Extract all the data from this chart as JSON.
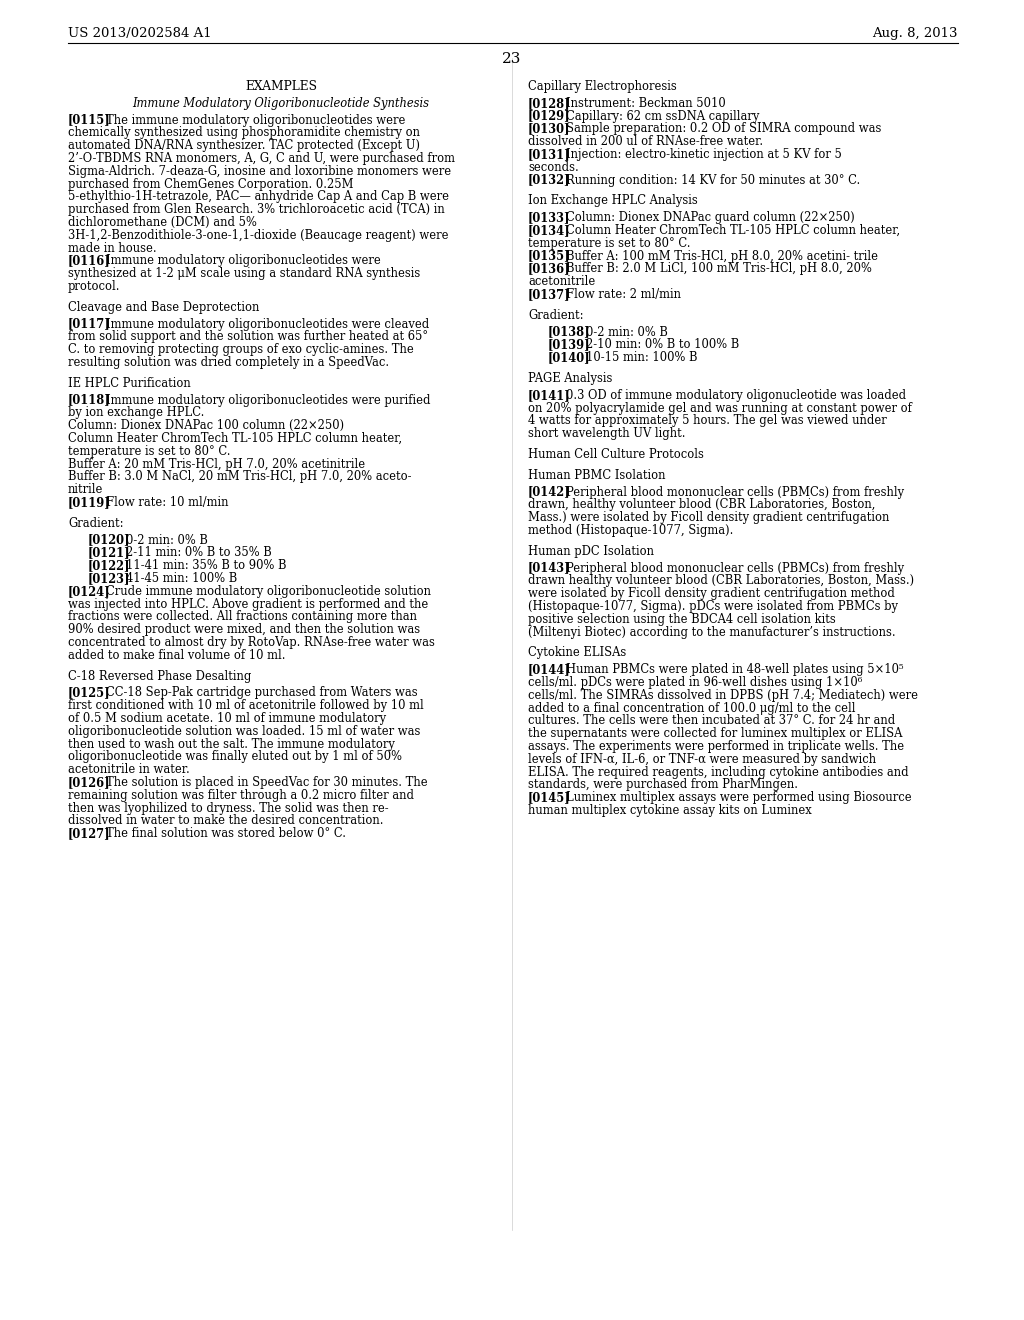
{
  "header_left": "US 2013/0202584 A1",
  "header_right": "Aug. 8, 2013",
  "page_number": "23",
  "background_color": "#ffffff",
  "text_color": "#000000",
  "left_column": [
    {
      "type": "section_title_center",
      "text": "EXAMPLES"
    },
    {
      "type": "subsection_title_center",
      "text": "Immune Modulatory Oligoribonucleotide Synthesis"
    },
    {
      "type": "paragraph",
      "tag": "[0115]",
      "text": "The immune modulatory oligoribonucleotides were chemically synthesized using phosphoramidite chemistry on automated DNA/RNA synthesizer. TAC protected (Except U) 2’-O-TBDMS RNA monomers, A, G, C and U, were purchased from Sigma-Aldrich. 7-deaza-G, inosine and loxoribine monomers were purchased from ChemGenes Corporation. 0.25M 5-ethylthio-1H-tetrazole, PAC— anhydride Cap A and Cap B were purchased from Glen Research. 3% trichloroacetic acid (TCA) in dichloromethane (DCM) and 5%   3H-1,2-Benzodithiole-3-one-1,1-dioxide  (Beaucage reagent) were made in house."
    },
    {
      "type": "paragraph",
      "tag": "[0116]",
      "text": "Immune modulatory oligoribonucleotides were synthesized at 1-2 μM scale using a standard RNA synthesis protocol."
    },
    {
      "type": "gap"
    },
    {
      "type": "subsection_title",
      "text": "Cleavage and Base Deprotection"
    },
    {
      "type": "paragraph",
      "tag": "[0117]",
      "text": "Immune modulatory oligoribonucleotides were cleaved from solid support and the solution was further heated at 65° C. to removing protecting groups of exo cyclic-amines. The resulting solution was dried completely in a SpeedVac."
    },
    {
      "type": "gap"
    },
    {
      "type": "subsection_title",
      "text": "IE HPLC Purification"
    },
    {
      "type": "paragraph",
      "tag": "[0118]",
      "text": "Immune modulatory oligoribonucleotides were purified by ion exchange HPLC."
    },
    {
      "type": "plain_text",
      "text": "Column: Dionex DNAPac 100 column (22×250)"
    },
    {
      "type": "plain_text",
      "text": "Column Heater ChromTech TL-105 HPLC column heater,\ntemperature is set to 80° C."
    },
    {
      "type": "plain_text",
      "text": "Buffer A: 20 mM Tris-HCl, pH 7.0, 20% acetinitrile"
    },
    {
      "type": "plain_text",
      "text": "Buffer B: 3.0 M NaCl, 20 mM Tris-HCl, pH 7.0, 20% aceto-\nnitrile"
    },
    {
      "type": "paragraph",
      "tag": "[0119]",
      "text": "Flow rate: 10 ml/min"
    },
    {
      "type": "gap"
    },
    {
      "type": "subsection_title",
      "text": "Gradient:"
    },
    {
      "type": "gradient_item",
      "tag": "[0120]",
      "text": "0-2 min: 0% B"
    },
    {
      "type": "gradient_item",
      "tag": "[0121]",
      "text": "2-11 min: 0% B to 35% B"
    },
    {
      "type": "gradient_item",
      "tag": "[0122]",
      "text": "11-41 min: 35% B to 90% B"
    },
    {
      "type": "gradient_item",
      "tag": "[0123]",
      "text": "41-45 min: 100% B"
    },
    {
      "type": "paragraph",
      "tag": "[0124]",
      "text": "Crude immune modulatory oligoribonucleotide solution was injected into HPLC. Above gradient is performed and the fractions were collected. All fractions containing more than 90% desired product were mixed, and then the solution was concentrated to almost dry by RotoVap. RNAse-free water was added to make final volume of 10 ml."
    },
    {
      "type": "gap"
    },
    {
      "type": "subsection_title",
      "text": "C-18 Reversed Phase Desalting"
    },
    {
      "type": "paragraph",
      "tag": "[0125]",
      "text": "CC-18 Sep-Pak cartridge purchased from Waters was first conditioned with 10 ml of acetonitrile followed by 10 ml of 0.5 M sodium acetate. 10 ml of immune modulatory oligoribonucleotide solution was loaded. 15 ml of water was then used to wash out the salt. The immune modulatory oligoribonucleotide was finally eluted out by 1 ml of 50% acetonitrile in water."
    },
    {
      "type": "paragraph",
      "tag": "[0126]",
      "text": "The solution is placed in SpeedVac for 30 minutes. The remaining solution was filter through a 0.2 micro filter and then was lyophilized to dryness. The solid was then re-dissolved in water to make the desired concentration."
    },
    {
      "type": "paragraph",
      "tag": "[0127]",
      "text": "The final solution was stored below 0° C."
    }
  ],
  "right_column": [
    {
      "type": "subsection_title",
      "text": "Capillary Electrophoresis"
    },
    {
      "type": "paragraph",
      "tag": "[0128]",
      "text": "Instrument: Beckman 5010"
    },
    {
      "type": "paragraph",
      "tag": "[0129]",
      "text": "Capillary: 62 cm ssDNA capillary"
    },
    {
      "type": "paragraph",
      "tag": "[0130]",
      "text": "Sample preparation: 0.2 OD of SIMRA compound was dissolved in 200 ul of RNAse-free water."
    },
    {
      "type": "paragraph",
      "tag": "[0131]",
      "text": "Injection: electro-kinetic injection at 5 KV for 5 seconds."
    },
    {
      "type": "paragraph",
      "tag": "[0132]",
      "text": "Running condition: 14 KV for 50 minutes at 30° C."
    },
    {
      "type": "gap"
    },
    {
      "type": "subsection_title",
      "text": "Ion Exchange HPLC Analysis"
    },
    {
      "type": "paragraph",
      "tag": "[0133]",
      "text": "Column: Dionex DNAPac guard column (22×250)"
    },
    {
      "type": "paragraph",
      "tag": "[0134]",
      "text": "Column Heater ChromTech TL-105 HPLC column\nheater, temperature is set to 80° C."
    },
    {
      "type": "paragraph",
      "tag": "[0135]",
      "text": "Buffer A: 100 mM Tris-HCl, pH 8.0, 20% acetini-\ntrile"
    },
    {
      "type": "paragraph",
      "tag": "[0136]",
      "text": "Buffer B: 2.0 M LiCl, 100 mM Tris-HCl, pH 8.0,\n20% acetonitrile"
    },
    {
      "type": "paragraph",
      "tag": "[0137]",
      "text": "Flow rate: 2 ml/min"
    },
    {
      "type": "gap"
    },
    {
      "type": "subsection_title",
      "text": "Gradient:"
    },
    {
      "type": "gradient_item",
      "tag": "[0138]",
      "text": "0-2 min: 0% B"
    },
    {
      "type": "gradient_item",
      "tag": "[0139]",
      "text": "2-10 min: 0% B to 100% B"
    },
    {
      "type": "gradient_item",
      "tag": "[0140]",
      "text": "10-15 min: 100% B"
    },
    {
      "type": "gap"
    },
    {
      "type": "subsection_title",
      "text": "PAGE Analysis"
    },
    {
      "type": "paragraph",
      "tag": "[0141]",
      "text": "0.3 OD of immune modulatory oligonucleotide was loaded on 20% polyacrylamide gel and was running at constant power of 4 watts for approximately 5 hours. The gel was viewed under short wavelength UV light."
    },
    {
      "type": "gap"
    },
    {
      "type": "subsection_title",
      "text": "Human Cell Culture Protocols"
    },
    {
      "type": "gap_small"
    },
    {
      "type": "subsection_title",
      "text": "Human PBMC Isolation"
    },
    {
      "type": "paragraph",
      "tag": "[0142]",
      "text": "Peripheral blood mononuclear cells (PBMCs) from freshly drawn, healthy volunteer blood (CBR Laboratories, Boston, Mass.) were isolated by Ficoll density gradient centrifugation method (Histopaque-1077, Sigma)."
    },
    {
      "type": "gap"
    },
    {
      "type": "subsection_title",
      "text": "Human pDC Isolation"
    },
    {
      "type": "paragraph",
      "tag": "[0143]",
      "text": "Peripheral blood mononuclear cells (PBMCs) from freshly drawn healthy volunteer blood (CBR Laboratories, Boston, Mass.) were isolated by Ficoll density gradient centrifugation method (Histopaque-1077, Sigma). pDCs were isolated from PBMCs by positive selection using the BDCA4 cell isolation kits (Miltenyi Biotec) according to the manufacturer’s instructions."
    },
    {
      "type": "gap"
    },
    {
      "type": "subsection_title",
      "text": "Cytokine ELISAs"
    },
    {
      "type": "paragraph",
      "tag": "[0144]",
      "text": "Human PBMCs were plated in 48-well plates using 5×10⁵ cells/ml. pDCs were plated in 96-well dishes using 1×10⁶ cells/ml. The SIMRAs dissolved in DPBS (pH 7.4; Mediatech) were added to a final concentration of 100.0 μg/ml to the cell cultures. The cells were then incubated at 37° C. for 24 hr and the supernatants were collected for luminex multiplex or ELISA assays. The experiments were performed in triplicate wells. The levels of IFN-α, IL-6, or TNF-α were measured by sandwich ELISA. The required reagents, including cytokine antibodies and standards, were purchased from PharMingen."
    },
    {
      "type": "paragraph",
      "tag": "[0145]",
      "text": "Luminex multiplex assays were performed using Biosource human multiplex cytokine assay kits on Luminex"
    }
  ]
}
